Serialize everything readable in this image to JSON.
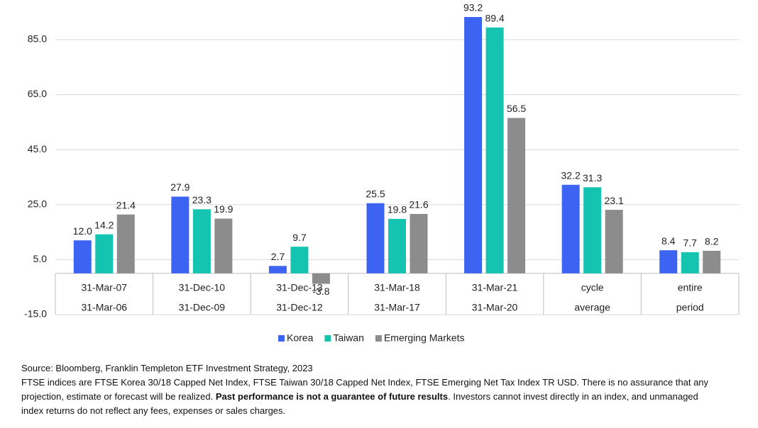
{
  "chart_data": {
    "type": "bar",
    "categories": [
      [
        "31-Mar-07",
        "31-Mar-06"
      ],
      [
        "31-Dec-10",
        "31-Dec-09"
      ],
      [
        "31-Dec-13",
        "31-Dec-12"
      ],
      [
        "31-Mar-18",
        "31-Mar-17"
      ],
      [
        "31-Mar-21",
        "31-Mar-20"
      ],
      [
        "cycle",
        "average"
      ],
      [
        "entire",
        "period"
      ]
    ],
    "series": [
      {
        "name": "Korea",
        "color": "#3d63f2",
        "values": [
          12.0,
          27.9,
          2.7,
          25.5,
          93.2,
          32.2,
          8.4
        ],
        "value_labels": [
          "12.0",
          "27.9",
          "2.7",
          "25.5",
          "93.2",
          "32.2",
          "8.4"
        ]
      },
      {
        "name": "Taiwan",
        "color": "#14c4b0",
        "values": [
          14.2,
          23.3,
          9.7,
          19.8,
          89.4,
          31.3,
          7.7
        ],
        "value_labels": [
          "14.2",
          "23.3",
          "9.7",
          "19.8",
          "89.4",
          "31.3",
          "7.7"
        ]
      },
      {
        "name": "Emerging Markets",
        "color": "#8c8c8c",
        "values": [
          21.4,
          19.9,
          -3.8,
          21.6,
          56.5,
          23.1,
          8.2
        ],
        "value_labels": [
          "21.4",
          "19.9",
          "-3.8",
          "21.6",
          "56.5",
          "23.1",
          "8.2"
        ]
      }
    ],
    "ylim": [
      -15,
      95
    ],
    "yticks": [
      {
        "value": -15,
        "label": "-15.0"
      },
      {
        "value": 5,
        "label": "5.0"
      },
      {
        "value": 25,
        "label": "25.0"
      },
      {
        "value": 45,
        "label": "45.0"
      },
      {
        "value": 65,
        "label": "65.0"
      },
      {
        "value": 85,
        "label": "85.0"
      }
    ],
    "grid": true,
    "legend": "bottom",
    "notes": [
      [
        "Source: Bloomberg, Franklin Templeton ETF Investment Strategy, 2023"
      ],
      [
        "FTSE indices are FTSE Korea 30/18 Capped Net Index, FTSE Taiwan 30/18 Capped Net Index, FTSE Emerging Net Tax Index TR USD. There is no assurance that any"
      ],
      [
        "projection, estimate or forecast will be realized. ",
        "Past performance is not a guarantee of future results",
        ". Investors cannot invest directly in an index, and unmanaged"
      ],
      [
        "index returns do not reflect any fees, expenses or sales charges."
      ]
    ]
  }
}
